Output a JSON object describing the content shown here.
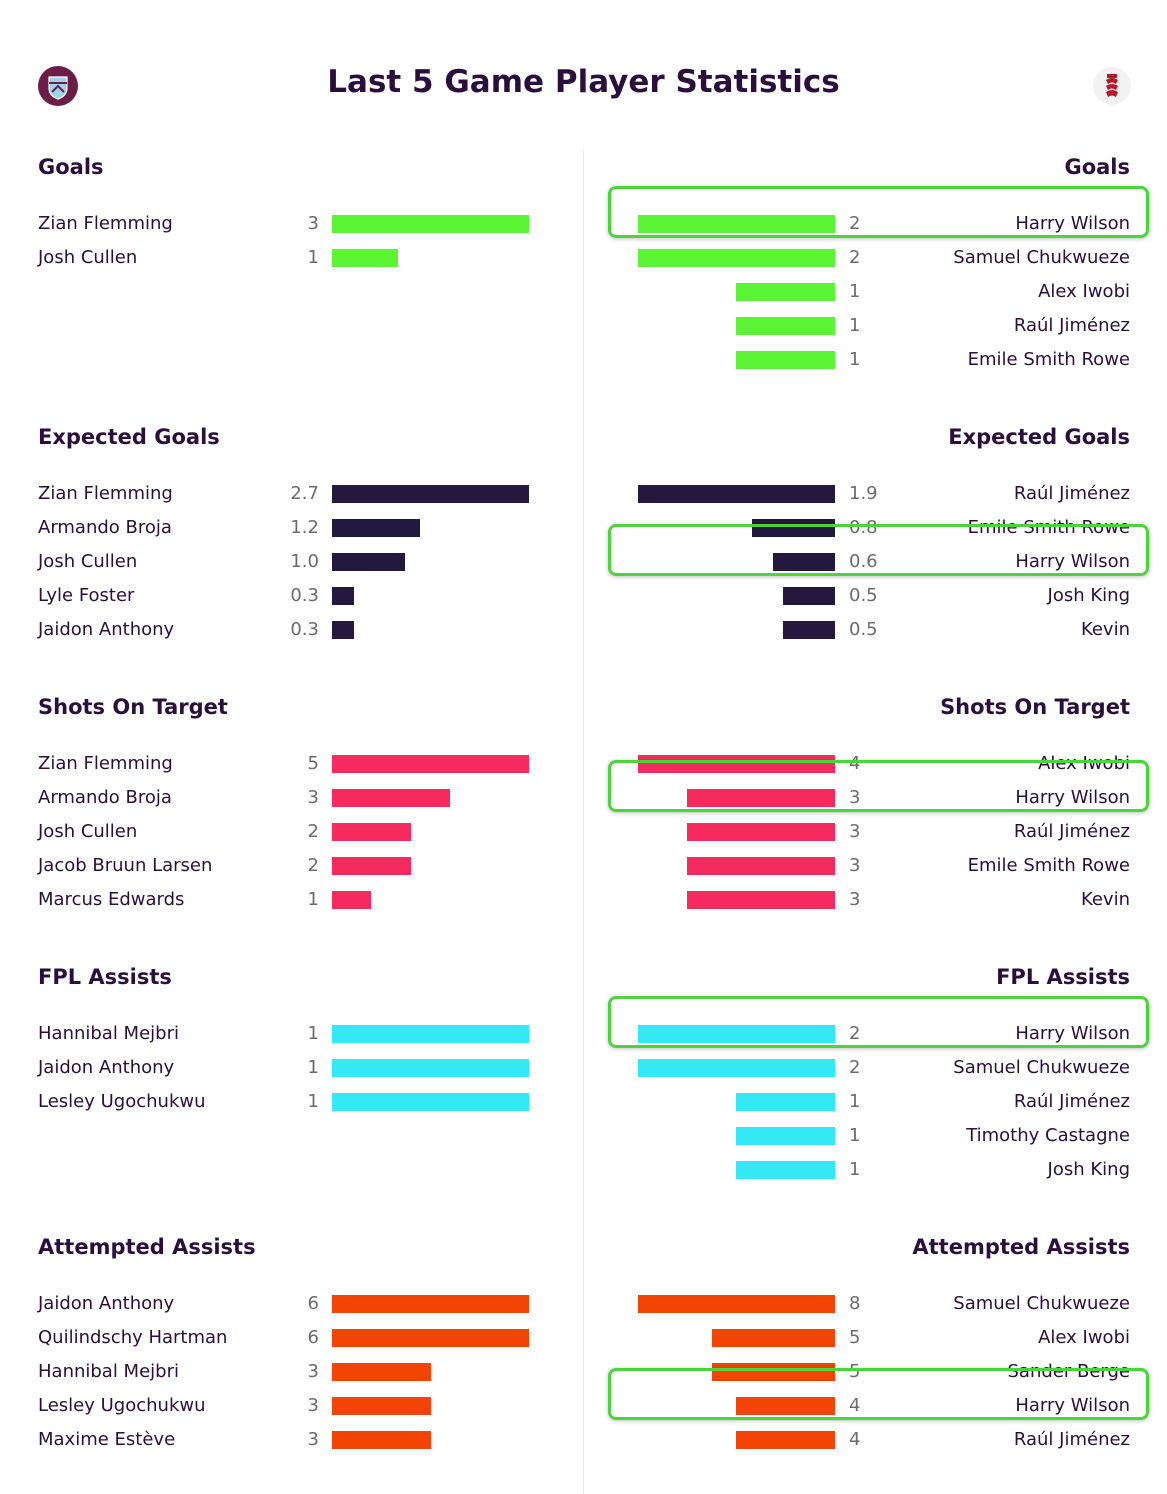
{
  "title": "Last 5 Game Player Statistics",
  "crests": {
    "left": "burnley-crest-icon",
    "right": "fulham-crest-icon"
  },
  "chart_data": [
    {
      "type": "bar",
      "title": "Goals",
      "color": "#5cf536",
      "left": {
        "max": 3,
        "players": [
          {
            "name": "Zian Flemming",
            "value": "3"
          },
          {
            "name": "Josh Cullen",
            "value": "1"
          }
        ]
      },
      "right": {
        "max": 2,
        "players": [
          {
            "name": "Harry Wilson",
            "value": "2",
            "highlight": true
          },
          {
            "name": "Samuel Chukwueze",
            "value": "2"
          },
          {
            "name": "Alex Iwobi",
            "value": "1"
          },
          {
            "name": "Raúl Jiménez",
            "value": "1"
          },
          {
            "name": "Emile Smith Rowe",
            "value": "1"
          }
        ]
      }
    },
    {
      "type": "bar",
      "title": "Expected Goals",
      "color": "#24183f",
      "left": {
        "max": 2.7,
        "players": [
          {
            "name": "Zian Flemming",
            "value": "2.7"
          },
          {
            "name": "Armando Broja",
            "value": "1.2"
          },
          {
            "name": "Josh Cullen",
            "value": "1.0"
          },
          {
            "name": "Lyle Foster",
            "value": "0.3"
          },
          {
            "name": "Jaidon Anthony",
            "value": "0.3"
          }
        ]
      },
      "right": {
        "max": 1.9,
        "players": [
          {
            "name": "Raúl Jiménez",
            "value": "1.9"
          },
          {
            "name": "Emile Smith Rowe",
            "value": "0.8"
          },
          {
            "name": "Harry Wilson",
            "value": "0.6",
            "highlight": true
          },
          {
            "name": "Josh King",
            "value": "0.5"
          },
          {
            "name": "Kevin",
            "value": "0.5"
          }
        ]
      }
    },
    {
      "type": "bar",
      "title": "Shots On Target",
      "color": "#f52a5e",
      "left": {
        "max": 5,
        "players": [
          {
            "name": "Zian Flemming",
            "value": "5"
          },
          {
            "name": "Armando Broja",
            "value": "3"
          },
          {
            "name": "Josh Cullen",
            "value": "2"
          },
          {
            "name": "Jacob Bruun Larsen",
            "value": "2"
          },
          {
            "name": "Marcus Edwards",
            "value": "1"
          }
        ]
      },
      "right": {
        "max": 4,
        "players": [
          {
            "name": "Alex Iwobi",
            "value": "4"
          },
          {
            "name": "Harry Wilson",
            "value": "3",
            "highlight": true
          },
          {
            "name": "Raúl Jiménez",
            "value": "3"
          },
          {
            "name": "Emile Smith Rowe",
            "value": "3"
          },
          {
            "name": "Kevin",
            "value": "3"
          }
        ]
      }
    },
    {
      "type": "bar",
      "title": "FPL Assists",
      "color": "#35e8f5",
      "left": {
        "max": 1,
        "players": [
          {
            "name": "Hannibal Mejbri",
            "value": "1"
          },
          {
            "name": "Jaidon Anthony",
            "value": "1"
          },
          {
            "name": "Lesley Ugochukwu",
            "value": "1"
          }
        ]
      },
      "right": {
        "max": 2,
        "players": [
          {
            "name": "Harry Wilson",
            "value": "2",
            "highlight": true
          },
          {
            "name": "Samuel Chukwueze",
            "value": "2"
          },
          {
            "name": "Raúl Jiménez",
            "value": "1"
          },
          {
            "name": "Timothy Castagne",
            "value": "1"
          },
          {
            "name": "Josh King",
            "value": "1"
          }
        ]
      }
    },
    {
      "type": "bar",
      "title": "Attempted Assists",
      "color": "#f24405",
      "left": {
        "max": 6,
        "players": [
          {
            "name": "Jaidon Anthony",
            "value": "6"
          },
          {
            "name": "Quilindschy Hartman",
            "value": "6"
          },
          {
            "name": "Hannibal Mejbri",
            "value": "3"
          },
          {
            "name": "Lesley Ugochukwu",
            "value": "3"
          },
          {
            "name": "Maxime Estève",
            "value": "3"
          }
        ]
      },
      "right": {
        "max": 8,
        "players": [
          {
            "name": "Samuel Chukwueze",
            "value": "8"
          },
          {
            "name": "Alex Iwobi",
            "value": "5"
          },
          {
            "name": "Sander Berge",
            "value": "5"
          },
          {
            "name": "Harry Wilson",
            "value": "4",
            "highlight": true
          },
          {
            "name": "Raúl Jiménez",
            "value": "4"
          }
        ]
      }
    }
  ]
}
